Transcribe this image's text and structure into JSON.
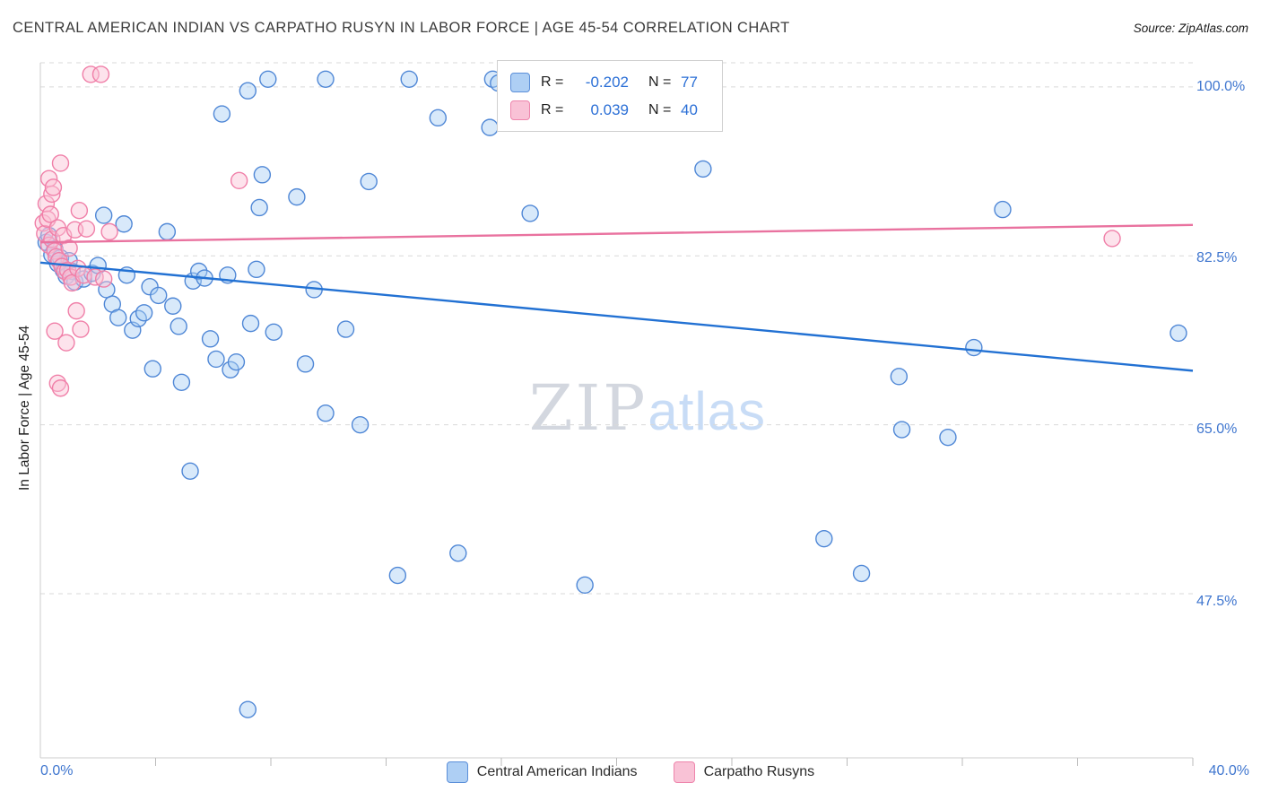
{
  "header": {
    "title": "CENTRAL AMERICAN INDIAN VS CARPATHO RUSYN IN LABOR FORCE | AGE 45-54 CORRELATION CHART",
    "source": "Source: ZipAtlas.com"
  },
  "axes": {
    "y_label": "In Labor Force | Age 45-54",
    "y_ticks": [
      "100.0%",
      "82.5%",
      "65.0%",
      "47.5%"
    ],
    "x_tick_left": "0.0%",
    "x_tick_right": "40.0%"
  },
  "correlation_legend": {
    "rows": [
      {
        "series": "Central American Indians",
        "r_label": "R =",
        "r_value": "-0.202",
        "n_label": "N =",
        "n_value": "77"
      },
      {
        "series": "Carpatho Rusyns",
        "r_label": "R =",
        "r_value": "0.039",
        "n_label": "N =",
        "n_value": "40"
      }
    ]
  },
  "bottom_legend": {
    "items": [
      {
        "label": "Central American Indians"
      },
      {
        "label": "Carpatho Rusyns"
      }
    ]
  },
  "watermark": {
    "part1": "ZIP",
    "part2": "atlas"
  },
  "colors": {
    "blue_fill": "#A9CEF4",
    "blue_stroke": "#4F87D6",
    "blue_trend": "#2271D3",
    "pink_fill": "#FAC0D4",
    "pink_stroke": "#F07FA8",
    "pink_trend": "#E9729F",
    "tick_label_blue": "#3F76CF",
    "grid_gray": "#D9D9D9"
  },
  "chart_data": {
    "type": "scatter",
    "title": "Central American Indian vs Carpatho Rusyn In Labor Force | Age 45-54",
    "xlabel": "",
    "ylabel": "In Labor Force | Age 45-54",
    "x_range": [
      0,
      40
    ],
    "y_range": [
      30.5,
      102.5
    ],
    "y_gridlines": [
      100,
      82.5,
      65,
      47.5
    ],
    "x_tick_step": 4,
    "grid": "horizontal-dashed",
    "legend_position": "top-center",
    "series": [
      {
        "name": "Central American Indians",
        "R": -0.202,
        "N": 77,
        "points": [
          [
            0.2,
            83.9
          ],
          [
            0.3,
            84.6
          ],
          [
            0.4,
            82.6
          ],
          [
            0.5,
            83.2
          ],
          [
            0.6,
            81.7
          ],
          [
            0.7,
            82.3
          ],
          [
            0.8,
            81.0
          ],
          [
            0.9,
            80.4
          ],
          [
            1.0,
            82.0
          ],
          [
            1.1,
            80.9
          ],
          [
            1.2,
            79.8
          ],
          [
            1.5,
            80.1
          ],
          [
            1.8,
            80.7
          ],
          [
            2.0,
            81.5
          ],
          [
            2.2,
            86.7
          ],
          [
            2.3,
            79.0
          ],
          [
            2.5,
            77.5
          ],
          [
            2.7,
            76.1
          ],
          [
            2.9,
            85.8
          ],
          [
            3.0,
            80.5
          ],
          [
            3.2,
            74.8
          ],
          [
            3.4,
            76.0
          ],
          [
            3.6,
            76.6
          ],
          [
            3.8,
            79.3
          ],
          [
            3.9,
            70.8
          ],
          [
            4.1,
            78.4
          ],
          [
            4.4,
            85.0
          ],
          [
            4.6,
            77.3
          ],
          [
            4.8,
            75.2
          ],
          [
            4.9,
            69.4
          ],
          [
            5.2,
            60.2
          ],
          [
            5.3,
            79.9
          ],
          [
            5.5,
            80.9
          ],
          [
            5.7,
            80.2
          ],
          [
            5.9,
            73.9
          ],
          [
            6.1,
            71.8
          ],
          [
            6.3,
            97.2
          ],
          [
            6.5,
            80.5
          ],
          [
            6.6,
            70.7
          ],
          [
            6.8,
            71.5
          ],
          [
            7.2,
            99.6
          ],
          [
            7.2,
            35.5
          ],
          [
            7.3,
            75.5
          ],
          [
            7.5,
            81.1
          ],
          [
            7.6,
            87.5
          ],
          [
            7.7,
            90.9
          ],
          [
            7.9,
            100.8
          ],
          [
            8.1,
            74.6
          ],
          [
            8.9,
            88.6
          ],
          [
            9.2,
            71.3
          ],
          [
            9.5,
            79.0
          ],
          [
            9.9,
            100.8
          ],
          [
            9.9,
            66.2
          ],
          [
            10.6,
            74.9
          ],
          [
            11.1,
            65.0
          ],
          [
            11.4,
            90.2
          ],
          [
            12.4,
            49.4
          ],
          [
            12.8,
            100.8
          ],
          [
            13.8,
            96.8
          ],
          [
            14.5,
            51.7
          ],
          [
            15.6,
            95.8
          ],
          [
            15.7,
            100.8
          ],
          [
            15.9,
            100.4
          ],
          [
            17.0,
            86.9
          ],
          [
            17.6,
            99.5
          ],
          [
            18.2,
            99.5
          ],
          [
            18.9,
            48.4
          ],
          [
            22.2,
            100.8
          ],
          [
            23.0,
            91.5
          ],
          [
            27.2,
            53.2
          ],
          [
            28.5,
            49.6
          ],
          [
            29.8,
            70.0
          ],
          [
            29.9,
            64.5
          ],
          [
            31.5,
            63.7
          ],
          [
            32.4,
            73.0
          ],
          [
            33.4,
            87.3
          ],
          [
            39.5,
            74.5
          ]
        ]
      },
      {
        "name": "Carpatho Rusyns",
        "R": 0.039,
        "N": 40,
        "points": [
          [
            0.1,
            85.9
          ],
          [
            0.15,
            84.8
          ],
          [
            0.2,
            87.9
          ],
          [
            0.25,
            86.3
          ],
          [
            0.3,
            90.5
          ],
          [
            0.3,
            83.6
          ],
          [
            0.35,
            86.8
          ],
          [
            0.4,
            84.2
          ],
          [
            0.4,
            88.9
          ],
          [
            0.45,
            89.6
          ],
          [
            0.5,
            83.0
          ],
          [
            0.5,
            74.7
          ],
          [
            0.55,
            82.4
          ],
          [
            0.6,
            85.4
          ],
          [
            0.6,
            69.3
          ],
          [
            0.65,
            82.0
          ],
          [
            0.7,
            92.1
          ],
          [
            0.7,
            68.8
          ],
          [
            0.75,
            81.4
          ],
          [
            0.8,
            84.6
          ],
          [
            0.85,
            80.9
          ],
          [
            0.9,
            73.5
          ],
          [
            0.95,
            81.0
          ],
          [
            1.0,
            83.3
          ],
          [
            1.05,
            80.3
          ],
          [
            1.1,
            79.7
          ],
          [
            1.2,
            85.2
          ],
          [
            1.25,
            76.8
          ],
          [
            1.3,
            81.2
          ],
          [
            1.35,
            87.2
          ],
          [
            1.4,
            74.9
          ],
          [
            1.5,
            80.5
          ],
          [
            1.6,
            85.3
          ],
          [
            1.75,
            101.3
          ],
          [
            1.9,
            80.3
          ],
          [
            2.1,
            101.3
          ],
          [
            2.2,
            80.1
          ],
          [
            2.4,
            85.0
          ],
          [
            6.9,
            90.3
          ],
          [
            37.2,
            84.3
          ]
        ]
      }
    ],
    "trend_lines": [
      {
        "series": "Central American Indians",
        "x1": 0,
        "y1": 81.8,
        "x2": 40,
        "y2": 70.6
      },
      {
        "series": "Carpatho Rusyns",
        "x1": 0,
        "y1": 83.9,
        "x2": 40,
        "y2": 85.7
      }
    ]
  }
}
